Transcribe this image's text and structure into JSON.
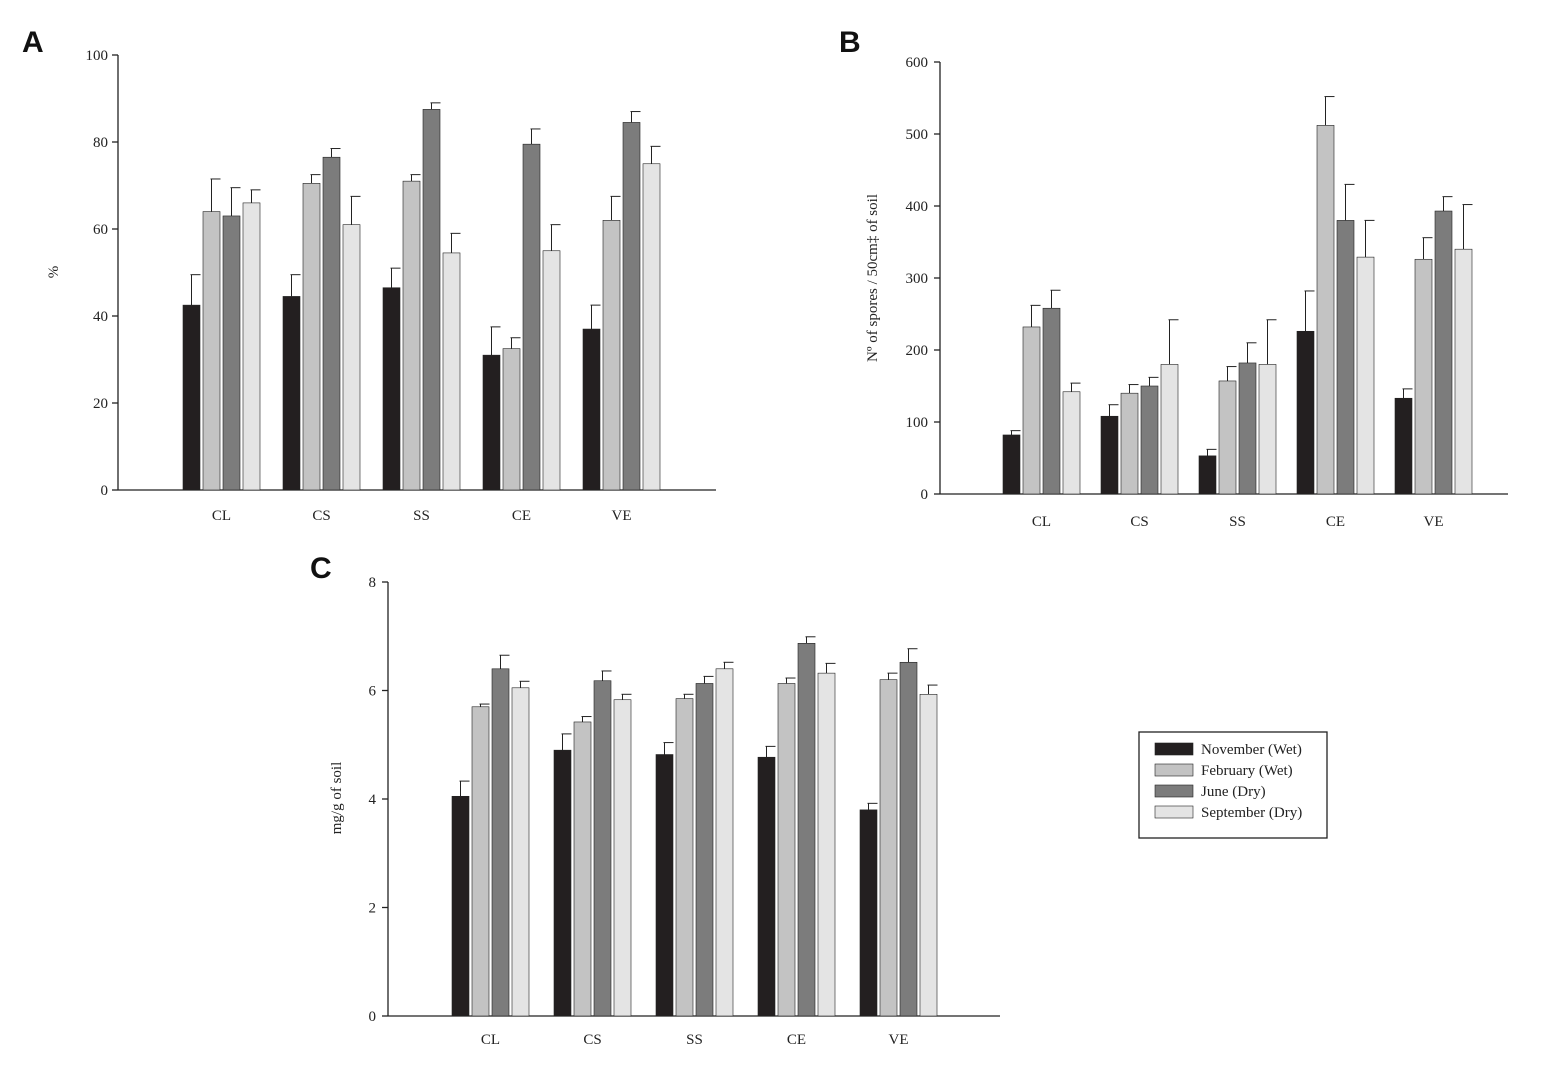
{
  "chart_data": [
    {
      "type": "bar",
      "panel_label": "A",
      "title": "",
      "xlabel": "",
      "ylabel": "%",
      "categories": [
        "CL",
        "CS",
        "SS",
        "CE",
        "VE"
      ],
      "ylim": [
        0,
        100
      ],
      "yticks": [
        0,
        20,
        40,
        60,
        80,
        100
      ],
      "grid": false,
      "series": [
        {
          "name": "November (Wet)",
          "values": [
            42.5,
            44.5,
            46.5,
            31,
            37
          ],
          "errors": [
            7,
            5,
            4.5,
            6.5,
            5.5
          ]
        },
        {
          "name": "February (Wet)",
          "values": [
            64,
            70.5,
            71,
            32.5,
            62
          ],
          "errors": [
            7.5,
            2,
            1.5,
            2.5,
            5.5
          ]
        },
        {
          "name": "June (Dry)",
          "values": [
            63,
            76.5,
            87.5,
            79.5,
            84.5
          ],
          "errors": [
            6.5,
            2,
            1.5,
            3.5,
            2.5
          ]
        },
        {
          "name": "September (Dry)",
          "values": [
            66,
            61,
            54.5,
            55,
            75
          ],
          "errors": [
            3,
            6.5,
            4.5,
            6,
            4
          ]
        }
      ]
    },
    {
      "type": "bar",
      "panel_label": "B",
      "title": "",
      "xlabel": "",
      "ylabel": "Nº of spores / 50cm‡ of soil",
      "categories": [
        "CL",
        "CS",
        "SS",
        "CE",
        "VE"
      ],
      "ylim": [
        0,
        600
      ],
      "yticks": [
        0,
        100,
        200,
        300,
        400,
        500,
        600
      ],
      "grid": false,
      "series": [
        {
          "name": "November (Wet)",
          "values": [
            82,
            108,
            53,
            226,
            133
          ],
          "errors": [
            6,
            16,
            9,
            56,
            13
          ]
        },
        {
          "name": "February (Wet)",
          "values": [
            232,
            140,
            157,
            512,
            326
          ],
          "errors": [
            30,
            12,
            20,
            40,
            30
          ]
        },
        {
          "name": "June (Dry)",
          "values": [
            258,
            150,
            182,
            380,
            393
          ],
          "errors": [
            25,
            12,
            28,
            50,
            20
          ]
        },
        {
          "name": "September (Dry)",
          "values": [
            142,
            180,
            180,
            329,
            340
          ],
          "errors": [
            12,
            62,
            62,
            51,
            62
          ]
        }
      ]
    },
    {
      "type": "bar",
      "panel_label": "C",
      "title": "",
      "xlabel": "",
      "ylabel": "mg/g of soil",
      "categories": [
        "CL",
        "CS",
        "SS",
        "CE",
        "VE"
      ],
      "ylim": [
        0,
        8
      ],
      "yticks": [
        0,
        2,
        4,
        6,
        8
      ],
      "grid": false,
      "series": [
        {
          "name": "November (Wet)",
          "values": [
            4.05,
            4.9,
            4.82,
            4.77,
            3.8
          ],
          "errors": [
            0.28,
            0.3,
            0.22,
            0.2,
            0.12
          ]
        },
        {
          "name": "February (Wet)",
          "values": [
            5.7,
            5.42,
            5.85,
            6.13,
            6.2
          ],
          "errors": [
            0.05,
            0.1,
            0.08,
            0.1,
            0.12
          ]
        },
        {
          "name": "June (Dry)",
          "values": [
            6.4,
            6.18,
            6.13,
            6.87,
            6.52
          ],
          "errors": [
            0.25,
            0.18,
            0.13,
            0.12,
            0.25
          ]
        },
        {
          "name": "September (Dry)",
          "values": [
            6.05,
            5.83,
            6.4,
            6.32,
            5.93
          ],
          "errors": [
            0.12,
            0.1,
            0.12,
            0.18,
            0.17
          ]
        }
      ]
    }
  ],
  "legend": {
    "placement": "right of panel C",
    "entries": [
      "November (Wet)",
      "February (Wet)",
      "June (Dry)",
      "September (Dry)"
    ]
  },
  "colors": {
    "November (Wet)": "#231f20",
    "February (Wet)": "#c3c3c3",
    "June (Dry)": "#7c7c7c",
    "September (Dry)": "#e4e4e4"
  }
}
